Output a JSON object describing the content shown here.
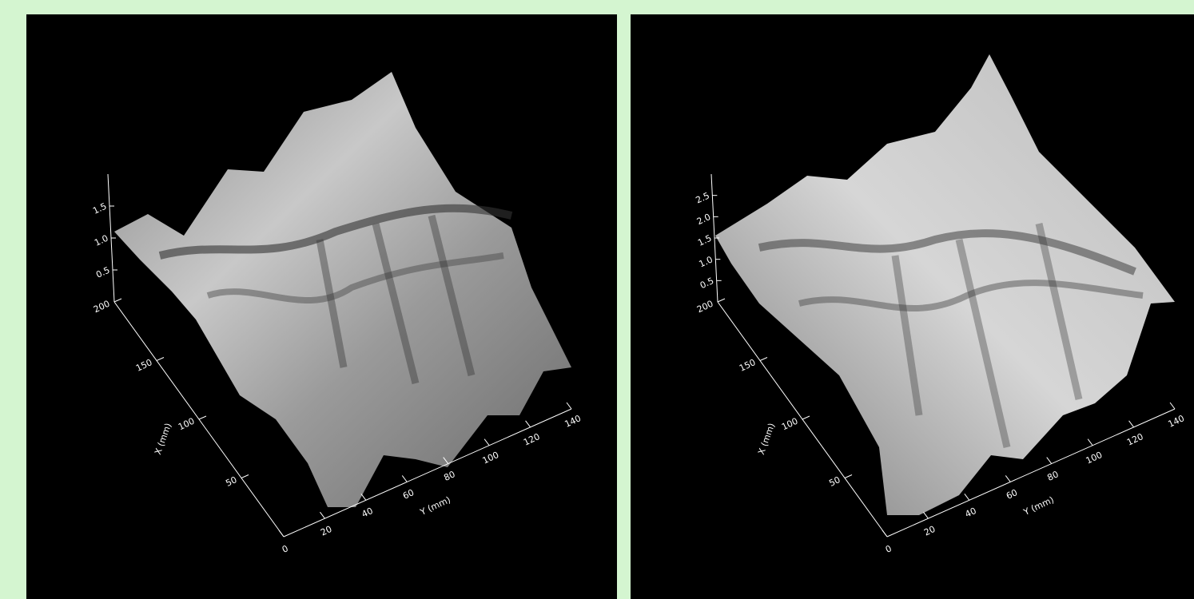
{
  "panels": [
    {
      "x_axis": {
        "label": "X (mm)",
        "lim": [
          0,
          200
        ],
        "ticks": [
          50,
          100,
          150,
          200
        ]
      },
      "y_axis": {
        "label": "Y (mm)",
        "lim": [
          0,
          140
        ],
        "ticks": [
          0,
          20,
          40,
          60,
          80,
          100,
          120,
          140
        ]
      },
      "z_axis": {
        "lim": [
          0,
          2
        ],
        "ticks": [
          {
            "value": 0.5,
            "label": "0.5"
          },
          {
            "value": 1,
            "label": "1.0"
          },
          {
            "value": 1.5,
            "label": "1.5"
          }
        ]
      }
    },
    {
      "x_axis": {
        "label": "X (mm)",
        "lim": [
          0,
          200
        ],
        "ticks": [
          50,
          100,
          150,
          200
        ]
      },
      "y_axis": {
        "label": "Y (mm)",
        "lim": [
          0,
          140
        ],
        "ticks": [
          0,
          20,
          40,
          60,
          80,
          100,
          120,
          140
        ]
      },
      "z_axis": {
        "lim": [
          0,
          3
        ],
        "ticks": [
          {
            "value": 0.5,
            "label": "0.5"
          },
          {
            "value": 1,
            "label": "1.0"
          },
          {
            "value": 1.5,
            "label": "1.5"
          },
          {
            "value": 2,
            "label": "2.0"
          },
          {
            "value": 2.5,
            "label": "2.5"
          }
        ]
      }
    }
  ]
}
